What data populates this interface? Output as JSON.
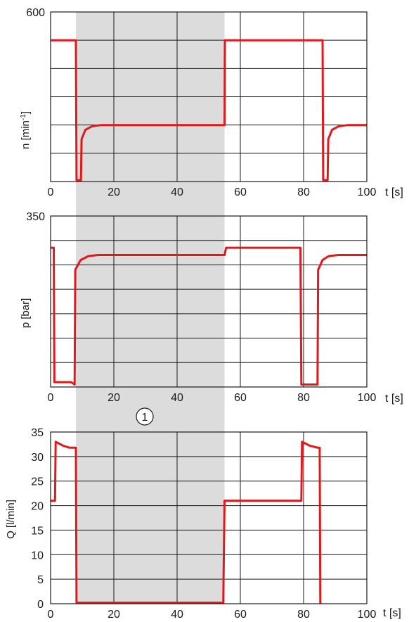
{
  "chart_data": [
    {
      "type": "line",
      "ylabel": "n [min",
      "ylabel_sup": "-1",
      "ylabel_tail": "]",
      "xlabel": "t [s]",
      "xlim": [
        0,
        100
      ],
      "ylim": [
        0,
        600
      ],
      "x_ticks": [
        "0",
        "20",
        "40",
        "60",
        "80",
        "100"
      ],
      "y_ticks_labeled": [
        "600"
      ],
      "grid": true,
      "highlight_range": [
        8,
        55
      ],
      "series": [
        {
          "color": "#e0191c",
          "points": [
            [
              0,
              500
            ],
            [
              8,
              500
            ],
            [
              8.2,
              5
            ],
            [
              9.6,
              5
            ],
            [
              9.8,
              150
            ],
            [
              11,
              183
            ],
            [
              13,
              195
            ],
            [
              16,
              200
            ],
            [
              55,
              200
            ],
            [
              55.1,
              500
            ],
            [
              86,
              500
            ],
            [
              86.2,
              5
            ],
            [
              87.6,
              5
            ],
            [
              87.8,
              150
            ],
            [
              89,
              183
            ],
            [
              91,
              195
            ],
            [
              94,
              200
            ],
            [
              100,
              200
            ]
          ]
        }
      ]
    },
    {
      "type": "line",
      "ylabel": "p [bar]",
      "xlabel": "t [s]",
      "xlim": [
        0,
        100
      ],
      "ylim": [
        0,
        350
      ],
      "x_ticks": [
        "0",
        "20",
        "40",
        "60",
        "80",
        "100"
      ],
      "y_ticks_labeled": [
        "350"
      ],
      "grid": true,
      "highlight_range": [
        8,
        55
      ],
      "series": [
        {
          "color": "#e0191c",
          "points": [
            [
              0,
              285
            ],
            [
              1,
              285
            ],
            [
              1.2,
              10
            ],
            [
              6.5,
              10
            ],
            [
              7.6,
              5
            ],
            [
              7.8,
              240
            ],
            [
              9.5,
              260
            ],
            [
              12,
              268
            ],
            [
              15,
              270
            ],
            [
              55,
              270
            ],
            [
              55.5,
              285
            ],
            [
              79,
              285
            ],
            [
              79.3,
              5
            ],
            [
              84.4,
              5
            ],
            [
              84.6,
              240
            ],
            [
              86,
              260
            ],
            [
              88,
              268
            ],
            [
              91,
              270
            ],
            [
              100,
              270
            ]
          ]
        }
      ]
    },
    {
      "type": "line",
      "ylabel": "Q [l/min]",
      "xlabel": "t [s]",
      "xlim": [
        0,
        100
      ],
      "ylim": [
        0,
        35
      ],
      "x_ticks": [
        "0",
        "20",
        "40",
        "60",
        "80",
        "100"
      ],
      "y_ticks": [
        "0",
        "5",
        "10",
        "15",
        "20",
        "25",
        "30",
        "35"
      ],
      "grid": true,
      "highlight_range": [
        8,
        55
      ],
      "series": [
        {
          "color": "#e0191c",
          "points": [
            [
              0,
              21
            ],
            [
              1.4,
              21
            ],
            [
              1.6,
              33
            ],
            [
              4,
              32.2
            ],
            [
              6,
              31.8
            ],
            [
              8,
              31.8
            ],
            [
              8.2,
              0.2
            ],
            [
              54.6,
              0.2
            ],
            [
              55,
              21
            ],
            [
              79.3,
              21
            ],
            [
              79.5,
              33
            ],
            [
              82,
              32.2
            ],
            [
              84.5,
              31.8
            ],
            [
              85.1,
              31.8
            ],
            [
              85.3,
              0
            ]
          ]
        }
      ]
    }
  ],
  "callout": {
    "label": "1"
  }
}
